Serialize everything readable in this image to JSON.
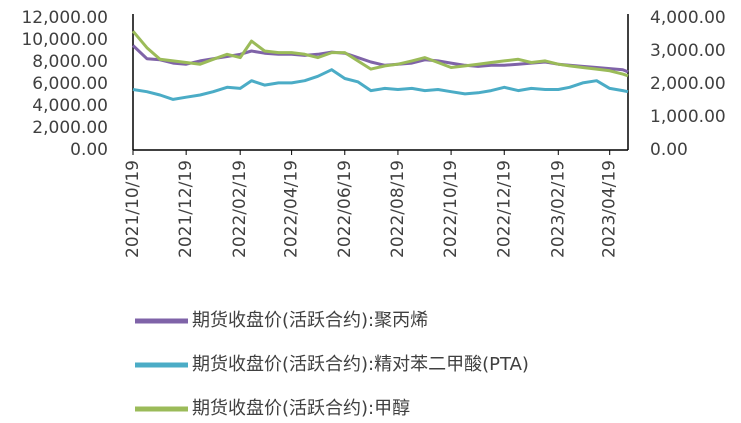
{
  "chart_data": {
    "type": "line",
    "x": [
      "2021/10/19",
      "2021/11/04",
      "2021/11/19",
      "2021/12/04",
      "2021/12/19",
      "2022/01/04",
      "2022/01/19",
      "2022/02/04",
      "2022/02/19",
      "2022/03/04",
      "2022/03/19",
      "2022/04/04",
      "2022/04/19",
      "2022/05/04",
      "2022/05/19",
      "2022/06/04",
      "2022/06/19",
      "2022/07/04",
      "2022/07/19",
      "2022/08/04",
      "2022/08/19",
      "2022/09/04",
      "2022/09/19",
      "2022/10/04",
      "2022/10/19",
      "2022/11/04",
      "2022/11/19",
      "2022/12/04",
      "2022/12/19",
      "2023/01/04",
      "2023/01/19",
      "2023/02/04",
      "2023/02/19",
      "2023/03/04",
      "2023/03/19",
      "2023/04/04",
      "2023/04/19",
      "2023/05/04",
      "2023/05/10"
    ],
    "xlim": [
      "2021/10/19",
      "2023/05/10"
    ],
    "xticks": [
      "2021/10/19",
      "2021/12/19",
      "2022/02/19",
      "2022/04/19",
      "2022/06/19",
      "2022/08/19",
      "2022/10/19",
      "2022/12/19",
      "2023/02/19",
      "2023/04/19"
    ],
    "ylim": [
      0,
      12000
    ],
    "yticks": [
      {
        "value": 0,
        "label": "0.00"
      },
      {
        "value": 2000,
        "label": "2,000.00"
      },
      {
        "value": 4000,
        "label": "4,000.00"
      },
      {
        "value": 6000,
        "label": "6,000.00"
      },
      {
        "value": 8000,
        "label": "8,000.00"
      },
      {
        "value": 10000,
        "label": "10,000.00"
      },
      {
        "value": 12000,
        "label": "12,000.00"
      }
    ],
    "y2lim": [
      0,
      4000
    ],
    "y2ticks": [
      {
        "value": 0,
        "label": "0.00"
      },
      {
        "value": 1000,
        "label": "1,000.00"
      },
      {
        "value": 2000,
        "label": "2,000.00"
      },
      {
        "value": 3000,
        "label": "3,000.00"
      },
      {
        "value": 4000,
        "label": "4,000.00"
      }
    ],
    "series": [
      {
        "name": "期货收盘价(活跃合约):聚丙烯",
        "color": "#7f63a8",
        "values": [
          9500,
          8300,
          8200,
          7900,
          7800,
          8100,
          8300,
          8500,
          8700,
          9000,
          8800,
          8700,
          8700,
          8600,
          8700,
          8900,
          8800,
          8400,
          8000,
          7700,
          7800,
          7900,
          8200,
          8100,
          7900,
          7700,
          7600,
          7700,
          7700,
          7800,
          7900,
          8000,
          7800,
          7700,
          7600,
          7500,
          7400,
          7300,
          7100
        ]
      },
      {
        "name": "期货收盘价(活跃合约):精对苯二甲酸(PTA)",
        "color": "#4bacc6",
        "values": [
          5500,
          5300,
          5000,
          4600,
          4800,
          5000,
          5300,
          5700,
          5600,
          6300,
          5900,
          6100,
          6100,
          6300,
          6700,
          7300,
          6500,
          6200,
          5400,
          5600,
          5500,
          5600,
          5400,
          5500,
          5300,
          5100,
          5200,
          5400,
          5700,
          5400,
          5600,
          5500,
          5500,
          5700,
          6100,
          6300,
          5600,
          5400,
          5300
        ]
      },
      {
        "name": "期货收盘价(活跃合约):甲醇",
        "color": "#9bbb59",
        "axis": "y2",
        "values": [
          3600,
          3100,
          2750,
          2700,
          2650,
          2600,
          2750,
          2900,
          2800,
          3300,
          3000,
          2950,
          2950,
          2900,
          2800,
          2950,
          2950,
          2700,
          2450,
          2550,
          2600,
          2700,
          2800,
          2650,
          2500,
          2550,
          2600,
          2650,
          2700,
          2750,
          2650,
          2700,
          2600,
          2550,
          2500,
          2450,
          2400,
          2300,
          2250
        ]
      }
    ]
  }
}
